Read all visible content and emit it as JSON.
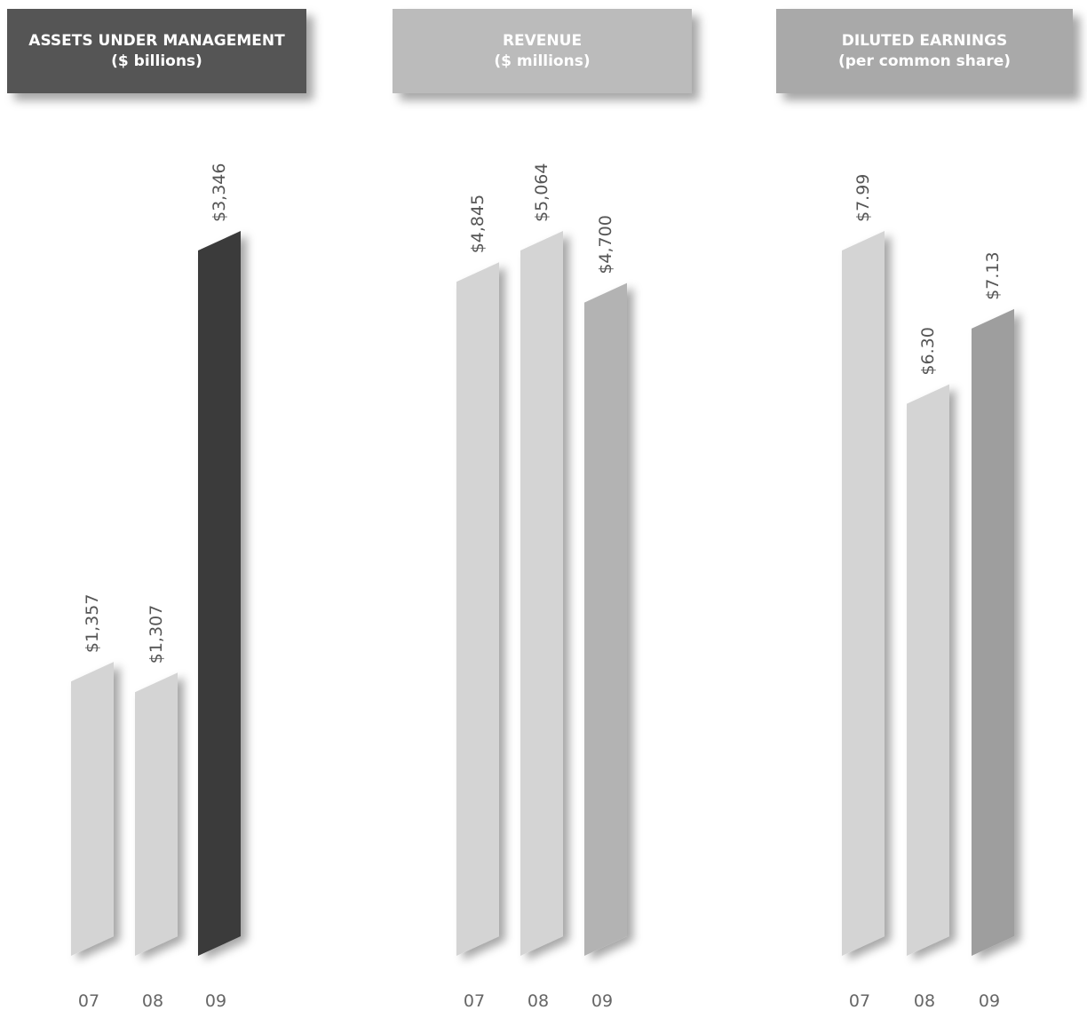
{
  "chart_data": [
    {
      "type": "bar",
      "title": "ASSETS UNDER MANAGEMENT",
      "subtitle": "($ billions)",
      "categories": [
        "07",
        "08",
        "09"
      ],
      "values": [
        1357,
        1307,
        3346
      ],
      "value_labels": [
        "$1,357",
        "$1,307",
        "$3,346"
      ],
      "bar_colors": [
        "#d4d4d4",
        "#d4d4d4",
        "#3a3a3a"
      ],
      "title_color": "#555555"
    },
    {
      "type": "bar",
      "title": "REVENUE",
      "subtitle": "($ millions)",
      "categories": [
        "07",
        "08",
        "09"
      ],
      "values": [
        4845,
        5064,
        4700
      ],
      "value_labels": [
        "$4,845",
        "$5,064",
        "$4,700"
      ],
      "bar_colors": [
        "#d4d4d4",
        "#d4d4d4",
        "#b3b3b3"
      ],
      "title_color": "#bbbbbb"
    },
    {
      "type": "bar",
      "title": "DILUTED EARNINGS",
      "subtitle": "(per common share)",
      "categories": [
        "07",
        "08",
        "09"
      ],
      "values": [
        7.99,
        6.3,
        7.13
      ],
      "value_labels": [
        "$7.99",
        "$6.30",
        "$7.13"
      ],
      "bar_colors": [
        "#d4d4d4",
        "#d4d4d4",
        "#9e9e9e"
      ],
      "title_color": "#a9a9a9"
    }
  ]
}
